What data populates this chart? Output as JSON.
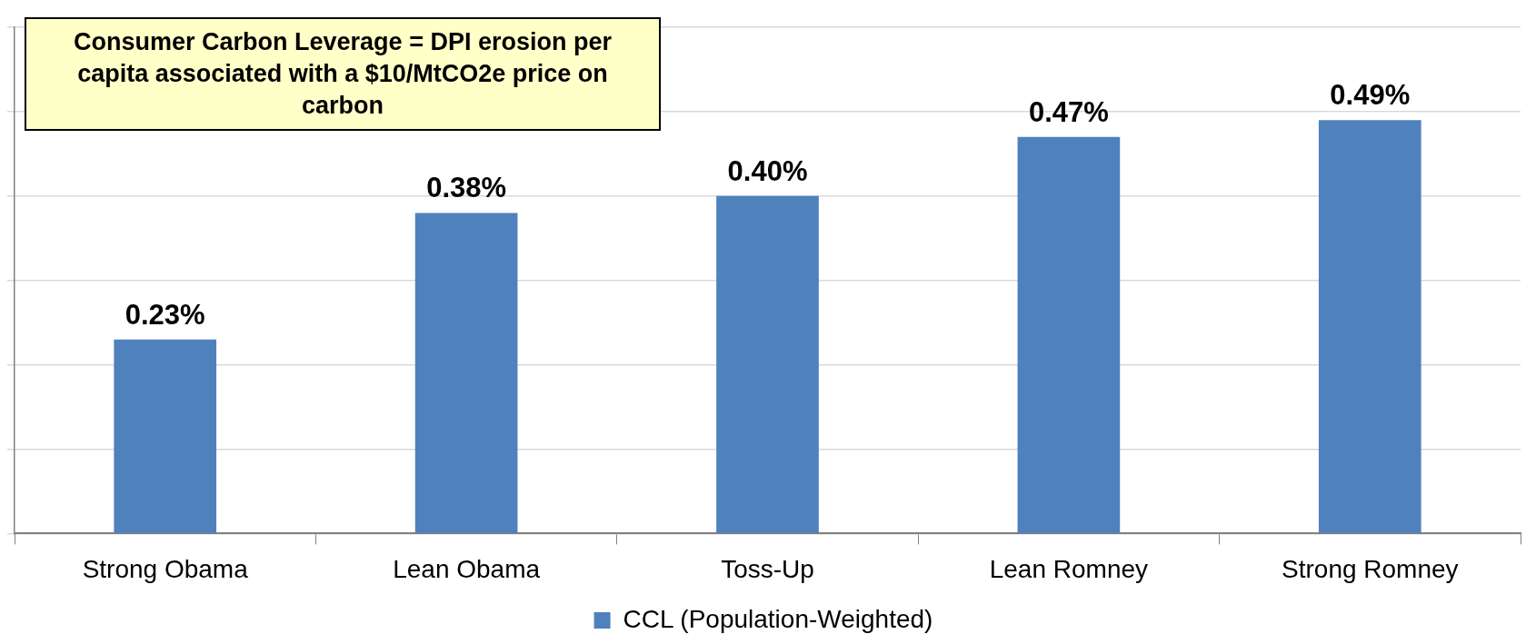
{
  "chart_data": {
    "type": "bar",
    "categories": [
      "Strong Obama",
      "Lean Obama",
      "Toss-Up",
      "Lean Romney",
      "Strong Romney"
    ],
    "series": [
      {
        "name": "CCL (Population-Weighted)",
        "color": "#4f81bd",
        "values": [
          0.23,
          0.38,
          0.4,
          0.47,
          0.49
        ],
        "value_labels": [
          "0.23%",
          "0.38%",
          "0.40%",
          "0.47%",
          "0.49%"
        ]
      }
    ],
    "ylim": [
      0,
      0.6
    ],
    "yticks": [
      {
        "value": 0,
        "label": null
      },
      {
        "value": 0.1,
        "label": null
      },
      {
        "value": 0.2,
        "label": null
      },
      {
        "value": 0.3,
        "label": null
      },
      {
        "value": 0.4,
        "label": null
      },
      {
        "value": 0.5,
        "label": null
      },
      {
        "value": 0.6,
        "label": null
      }
    ],
    "tick_labels": "x",
    "grid": "y",
    "legend": "bottom",
    "annotations": [
      "Consumer Carbon Leverage = DPI erosion per capita associated with a $10/MtCO2e price on carbon"
    ]
  }
}
